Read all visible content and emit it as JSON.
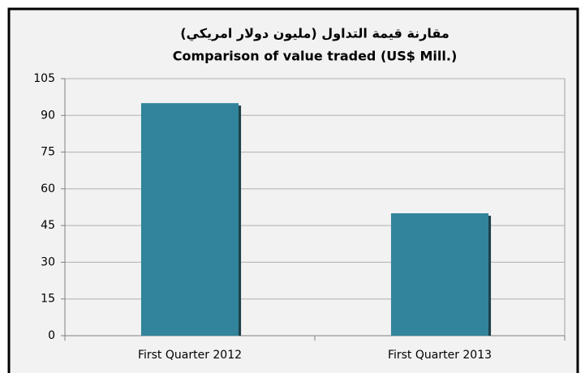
{
  "chart_data": {
    "type": "bar",
    "title": "مقارنة قيمة التداول  (مليون دولار امريكي)",
    "subtitle": "Comparison of value traded  (US$ Mill.)",
    "categories": [
      "First Quarter 2012",
      "First Quarter 2013"
    ],
    "values": [
      95,
      50
    ],
    "color": "#31849b",
    "ylim": [
      0,
      105
    ],
    "yticks": [
      0,
      15,
      30,
      45,
      60,
      75,
      90,
      105
    ],
    "grid": true
  }
}
